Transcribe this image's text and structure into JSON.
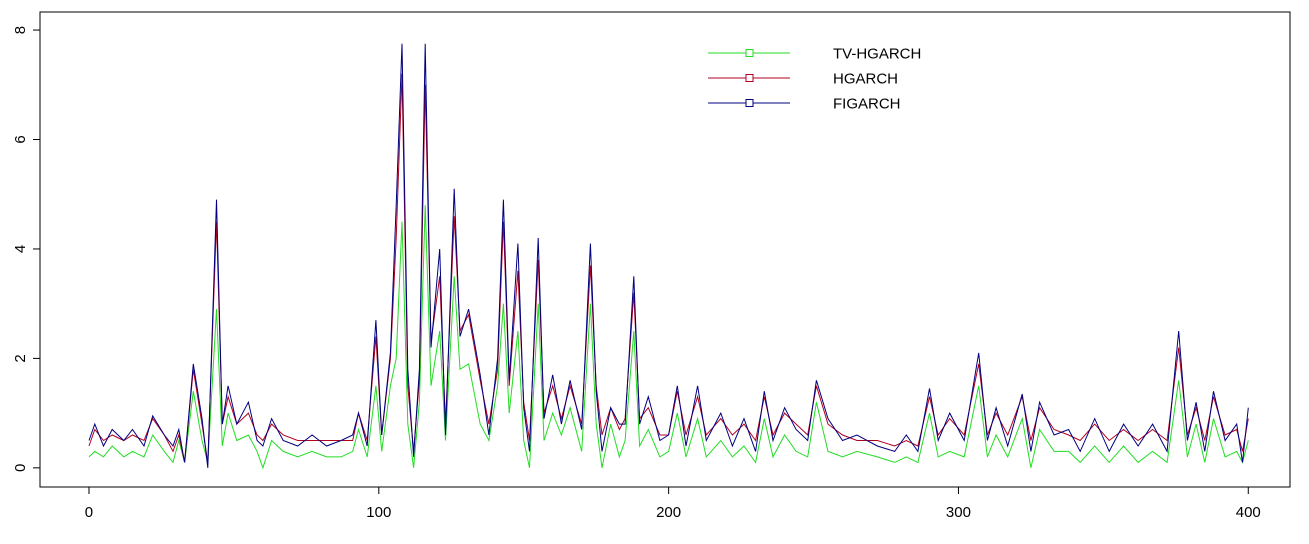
{
  "chart_data": {
    "type": "line",
    "x": [
      0,
      2,
      5,
      8,
      12,
      15,
      19,
      22,
      26,
      29,
      31,
      33,
      36,
      39,
      41,
      44,
      46,
      48,
      51,
      55,
      58,
      60,
      63,
      67,
      72,
      77,
      82,
      87,
      91,
      93,
      96,
      99,
      101,
      104,
      106,
      108,
      110,
      112,
      114,
      116,
      118,
      121,
      123,
      126,
      128,
      131,
      135,
      138,
      141,
      143,
      145,
      148,
      150,
      152,
      155,
      157,
      160,
      163,
      166,
      170,
      173,
      175,
      177,
      180,
      183,
      185,
      188,
      190,
      193,
      197,
      200,
      203,
      206,
      210,
      213,
      218,
      222,
      226,
      230,
      233,
      236,
      240,
      244,
      248,
      251,
      255,
      260,
      265,
      272,
      278,
      282,
      286,
      290,
      293,
      297,
      302,
      307,
      310,
      313,
      317,
      322,
      325,
      328,
      333,
      338,
      342,
      347,
      352,
      357,
      362,
      367,
      372,
      376,
      379,
      382,
      385,
      388,
      392,
      396,
      398,
      400
    ],
    "series": [
      {
        "name": "TV-HGARCH",
        "color": "#22dd22",
        "values": [
          0.2,
          0.3,
          0.2,
          0.4,
          0.2,
          0.3,
          0.2,
          0.6,
          0.3,
          0.1,
          0.5,
          0.1,
          1.4,
          0.5,
          0.1,
          2.9,
          0.4,
          1.0,
          0.5,
          0.6,
          0.3,
          0.0,
          0.5,
          0.3,
          0.2,
          0.3,
          0.2,
          0.2,
          0.3,
          0.7,
          0.2,
          1.5,
          0.3,
          1.5,
          2.0,
          4.5,
          0.8,
          0.0,
          1.2,
          4.8,
          1.5,
          2.5,
          0.5,
          3.5,
          1.8,
          1.9,
          0.8,
          0.5,
          1.5,
          3.0,
          1.0,
          2.5,
          0.5,
          0.0,
          3.0,
          0.5,
          1.0,
          0.6,
          1.1,
          0.3,
          3.0,
          0.8,
          0.0,
          0.8,
          0.2,
          0.5,
          2.5,
          0.4,
          0.7,
          0.2,
          0.3,
          1.0,
          0.2,
          0.9,
          0.2,
          0.5,
          0.2,
          0.4,
          0.1,
          0.9,
          0.2,
          0.6,
          0.3,
          0.2,
          1.2,
          0.3,
          0.2,
          0.3,
          0.2,
          0.1,
          0.2,
          0.1,
          1.0,
          0.2,
          0.3,
          0.2,
          1.5,
          0.2,
          0.6,
          0.2,
          0.9,
          0.0,
          0.7,
          0.3,
          0.3,
          0.1,
          0.4,
          0.1,
          0.4,
          0.1,
          0.3,
          0.1,
          1.6,
          0.2,
          0.8,
          0.1,
          0.9,
          0.2,
          0.3,
          0.1,
          0.5
        ]
      },
      {
        "name": "HGARCH",
        "color": "#b00020",
        "values": [
          0.4,
          0.7,
          0.5,
          0.6,
          0.5,
          0.6,
          0.5,
          0.9,
          0.6,
          0.3,
          0.6,
          0.1,
          1.8,
          0.8,
          0.1,
          4.5,
          0.8,
          1.3,
          0.8,
          1.0,
          0.6,
          0.5,
          0.8,
          0.6,
          0.5,
          0.5,
          0.5,
          0.5,
          0.5,
          1.0,
          0.5,
          2.4,
          0.6,
          2.0,
          4.2,
          7.2,
          1.5,
          0.3,
          1.6,
          7.0,
          2.3,
          3.5,
          0.8,
          4.6,
          2.5,
          2.8,
          1.6,
          0.8,
          1.8,
          4.5,
          1.5,
          3.6,
          1.2,
          0.5,
          3.8,
          1.0,
          1.5,
          0.9,
          1.5,
          0.8,
          3.7,
          1.5,
          0.6,
          1.1,
          0.7,
          0.9,
          3.2,
          0.9,
          1.1,
          0.6,
          0.6,
          1.4,
          0.6,
          1.3,
          0.6,
          0.9,
          0.6,
          0.8,
          0.5,
          1.3,
          0.6,
          1.0,
          0.8,
          0.6,
          1.5,
          0.8,
          0.6,
          0.5,
          0.5,
          0.4,
          0.5,
          0.4,
          1.3,
          0.6,
          0.9,
          0.6,
          1.9,
          0.6,
          1.0,
          0.6,
          1.3,
          0.5,
          1.1,
          0.7,
          0.6,
          0.5,
          0.8,
          0.5,
          0.7,
          0.5,
          0.7,
          0.5,
          2.2,
          0.6,
          1.1,
          0.5,
          1.3,
          0.6,
          0.7,
          0.3,
          0.9
        ]
      },
      {
        "name": "FIGARCH",
        "color": "#000080",
        "values": [
          0.5,
          0.8,
          0.4,
          0.7,
          0.5,
          0.7,
          0.4,
          0.95,
          0.6,
          0.4,
          0.7,
          0.1,
          1.9,
          0.9,
          0.0,
          4.9,
          0.8,
          1.5,
          0.8,
          1.2,
          0.5,
          0.4,
          0.9,
          0.5,
          0.4,
          0.6,
          0.4,
          0.5,
          0.6,
          1.0,
          0.4,
          2.7,
          0.6,
          2.1,
          4.8,
          7.75,
          1.8,
          0.2,
          1.8,
          7.75,
          2.2,
          4.0,
          0.6,
          5.1,
          2.4,
          2.9,
          1.7,
          0.6,
          2.0,
          4.9,
          1.6,
          4.1,
          1.1,
          0.3,
          4.2,
          0.9,
          1.7,
          0.8,
          1.6,
          0.7,
          4.1,
          1.4,
          0.3,
          1.1,
          0.8,
          0.8,
          3.5,
          0.8,
          1.3,
          0.5,
          0.6,
          1.5,
          0.4,
          1.5,
          0.5,
          1.0,
          0.4,
          0.9,
          0.3,
          1.4,
          0.5,
          1.1,
          0.7,
          0.5,
          1.6,
          0.9,
          0.5,
          0.6,
          0.4,
          0.3,
          0.6,
          0.3,
          1.45,
          0.5,
          1.0,
          0.5,
          2.1,
          0.5,
          1.1,
          0.4,
          1.35,
          0.3,
          1.2,
          0.6,
          0.7,
          0.3,
          0.9,
          0.3,
          0.8,
          0.4,
          0.8,
          0.3,
          2.5,
          0.5,
          1.2,
          0.3,
          1.4,
          0.5,
          0.8,
          0.1,
          1.1
        ]
      }
    ],
    "xlim": [
      -16.9,
      414.4
    ],
    "ylim": [
      -0.35,
      8.33
    ],
    "xticks": [
      0,
      100,
      200,
      300,
      400
    ],
    "yticks": [
      0,
      2,
      4,
      6,
      8
    ]
  }
}
